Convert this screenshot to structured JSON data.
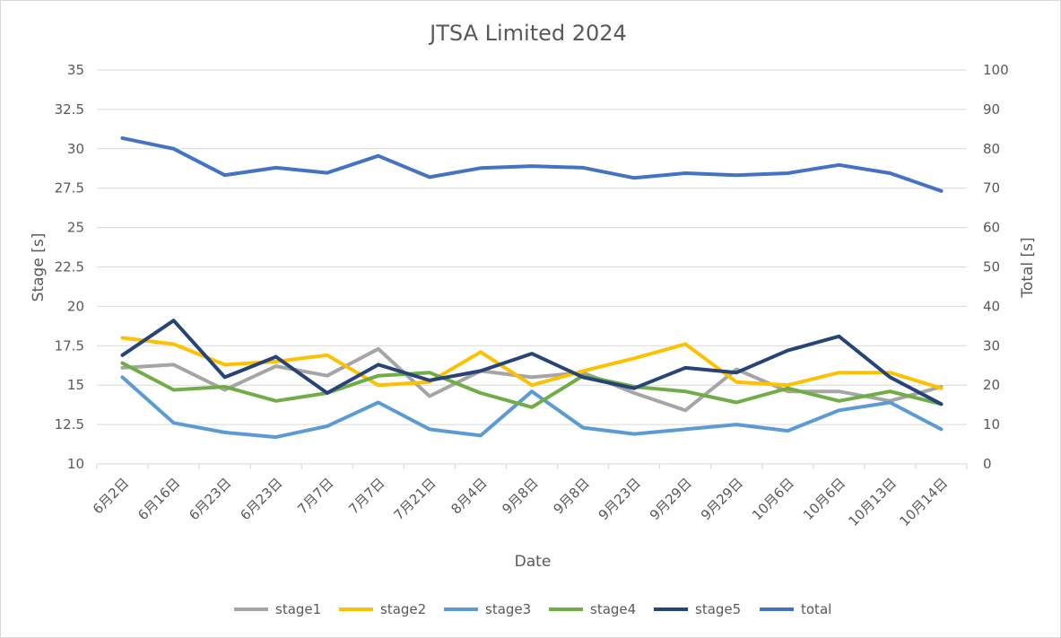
{
  "chart_data": {
    "type": "line",
    "title": "JTSA Limited 2024",
    "xlabel": "Date",
    "ylabel": "Stage [s]",
    "y2label": "Total [s]",
    "ylim": [
      10,
      35
    ],
    "y_ticks": [
      "10",
      "12.5",
      "15",
      "17.5",
      "20",
      "22.5",
      "25",
      "27.5",
      "30",
      "32.5",
      "35"
    ],
    "y2lim": [
      0,
      100
    ],
    "y2_ticks": [
      "0",
      "10",
      "20",
      "30",
      "40",
      "50",
      "60",
      "70",
      "80",
      "90",
      "100"
    ],
    "grid": true,
    "legend_position": "bottom",
    "categories": [
      "6月2日",
      "6月16日",
      "6月23日",
      "6月23日",
      "7月7日",
      "7月7日",
      "7月21日",
      "8月4日",
      "9月8日",
      "9月8日",
      "9月23日",
      "9月29日",
      "9月29日",
      "10月6日",
      "10月6日",
      "10月13日",
      "10月14日"
    ],
    "series": [
      {
        "name": "stage1",
        "axis": "left",
        "color": "#a5a5a5",
        "values": [
          16.1,
          16.3,
          14.7,
          16.2,
          15.6,
          17.3,
          14.3,
          15.9,
          15.5,
          15.8,
          14.5,
          13.4,
          16.0,
          14.6,
          14.6,
          14.0,
          14.9
        ]
      },
      {
        "name": "stage2",
        "axis": "left",
        "color": "#ffc000",
        "values": [
          18.0,
          17.6,
          16.3,
          16.5,
          16.9,
          15.0,
          15.2,
          17.1,
          15.0,
          15.9,
          16.7,
          17.6,
          15.2,
          15.0,
          15.8,
          15.8,
          14.8
        ]
      },
      {
        "name": "stage3",
        "axis": "left",
        "color": "#5b9bd5",
        "values": [
          15.5,
          12.6,
          12.0,
          11.7,
          12.4,
          13.9,
          12.2,
          11.8,
          14.6,
          12.3,
          11.9,
          12.2,
          12.5,
          12.1,
          13.4,
          13.9,
          12.2
        ]
      },
      {
        "name": "stage4",
        "axis": "left",
        "color": "#70ad47",
        "values": [
          16.4,
          14.7,
          14.9,
          14.0,
          14.5,
          15.6,
          15.8,
          14.5,
          13.6,
          15.6,
          14.9,
          14.6,
          13.9,
          14.8,
          14.0,
          14.6,
          13.8
        ]
      },
      {
        "name": "stage5",
        "axis": "left",
        "color": "#264478",
        "values": [
          16.9,
          19.1,
          15.5,
          16.8,
          14.5,
          16.3,
          15.3,
          15.9,
          17.0,
          15.5,
          14.8,
          16.1,
          15.8,
          17.2,
          18.1,
          15.5,
          13.8
        ]
      },
      {
        "name": "total",
        "axis": "right",
        "color": "#4472c4",
        "values": [
          82.7,
          80.0,
          73.3,
          75.2,
          73.9,
          78.2,
          72.8,
          75.1,
          75.6,
          75.2,
          72.6,
          73.8,
          73.3,
          73.8,
          75.9,
          73.8,
          69.3
        ]
      }
    ]
  }
}
